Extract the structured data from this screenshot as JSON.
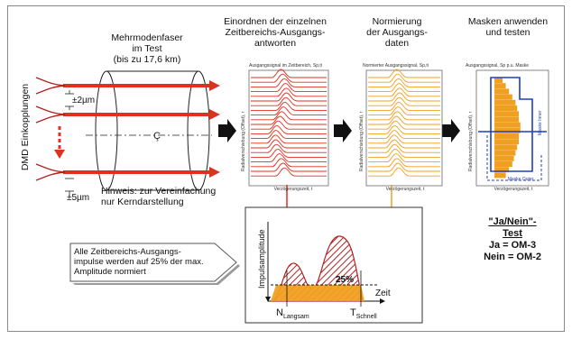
{
  "sections": {
    "fiber_title": [
      "Mehrmodenfaser",
      "im Test",
      "(bis zu 17,6 km)"
    ],
    "arrange_title": [
      "Einordnen der einzelnen",
      "Zeitbereichs-Ausgangs-",
      "antworten"
    ],
    "normalize_title": [
      "Normierung",
      "der Ausgangs-",
      "daten"
    ],
    "mask_title": [
      "Masken anwenden",
      "und testen"
    ]
  },
  "left": {
    "dmd_label": "DMD Einkopplungen",
    "offset_top": "±2µm",
    "offset_bottom": "±5µm",
    "hint": [
      "Hinweis: zur Vereinfachung",
      "nur Kerndarstellung"
    ],
    "core_symbol": "Ç"
  },
  "plot1": {
    "title": "Ausgangssignal im Zeitbereich, Sp,ti",
    "ylabel": "Radialverschiebung (Offset), r",
    "xlabel": "Verzögerungszeit, t"
  },
  "plot2": {
    "title": "Normierter Ausgangssignal, Sp,ti",
    "ylabel": "Radialverschiebung (Offset), r",
    "xlabel": "Verzögerungszeit, t"
  },
  "plot3": {
    "title": "Ausgangssignal, Sp p.u. Maske",
    "ylabel": "Radialverschiebung (Offset), r",
    "xlabel": "Verzögerungszeit, t",
    "legend_note": "Maske Inner",
    "legend_bottom": "Maske Outer"
  },
  "callout": [
    "Alle Zeitbereichs-Ausgangs-",
    "impulse werden auf 25% der max.",
    "Amplitude normiert"
  ],
  "inset": {
    "ylabel": "Impulsamplitude",
    "xlabel": "Zeit",
    "percent": "25%",
    "t_slow_main": "N",
    "t_slow_sub": "Langsam",
    "t_fast_main": "T",
    "t_fast_sub": "Schnell"
  },
  "result": {
    "title": "\"Ja/Nein\"-",
    "title2": "Test",
    "ja": "Ja = OM-3",
    "nein": "Nein = OM-2"
  },
  "colors": {
    "red": "#e03020",
    "red_dark": "#b22222",
    "orange": "#f0a020",
    "blue": "#1f3fbf",
    "arrow": "#1a1a1a"
  }
}
